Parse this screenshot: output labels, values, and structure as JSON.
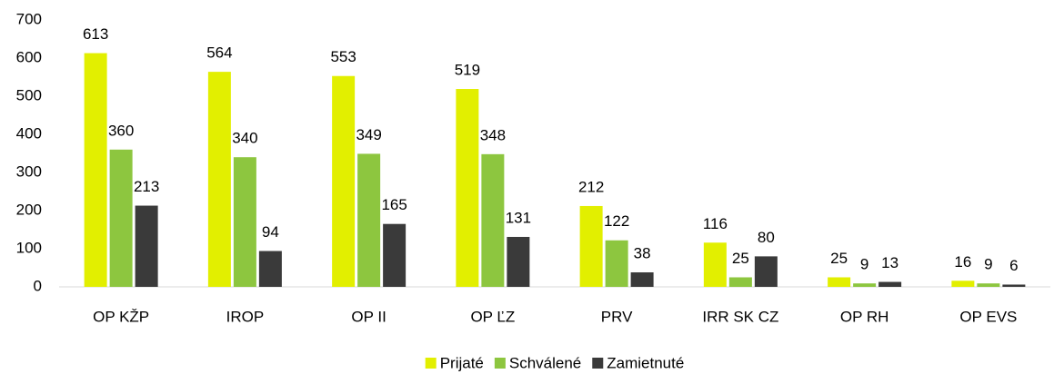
{
  "chart_data": {
    "type": "bar",
    "categories": [
      "OP KŽP",
      "IROP",
      "OP II",
      "OP ĽZ",
      "PRV",
      "IRR SK CZ",
      "OP RH",
      "OP EVS"
    ],
    "series": [
      {
        "name": "Prijaté",
        "color": "#e2ef00",
        "values": [
          613,
          564,
          553,
          519,
          212,
          116,
          25,
          16
        ]
      },
      {
        "name": "Schválené",
        "color": "#8dc63f",
        "values": [
          360,
          340,
          349,
          348,
          122,
          25,
          9,
          9
        ]
      },
      {
        "name": "Zamietnuté",
        "color": "#3a3a3a",
        "values": [
          213,
          94,
          165,
          131,
          38,
          80,
          13,
          6
        ]
      }
    ],
    "ylim": [
      0,
      700
    ],
    "yticks": [
      0,
      100,
      200,
      300,
      400,
      500,
      600,
      700
    ],
    "grid": false,
    "legend": "bottom"
  }
}
